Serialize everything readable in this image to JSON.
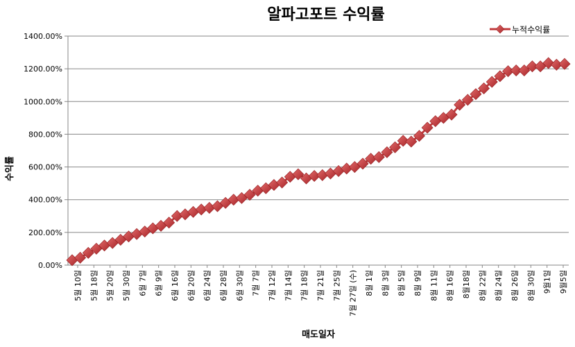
{
  "chart_data": {
    "type": "line",
    "title": "알파고포트 수익률",
    "xlabel": "매도일자",
    "ylabel": "수익률",
    "ylim": [
      0,
      1400
    ],
    "yticks": [
      "0.00%",
      "200.00%",
      "400.00%",
      "600.00%",
      "800.00%",
      "1000.00%",
      "1200.00%",
      "1400.00%"
    ],
    "grid": true,
    "legend_position": "top-right",
    "series_color": "#c0393b",
    "marker": "diamond",
    "x_tick_labels": [
      "5월 10일",
      "5월 18일",
      "5월 20일",
      "5월 30일",
      "6월 7일",
      "6월 9일",
      "6월 16일",
      "6월 20일",
      "6월 24일",
      "6월 28일",
      "6월 30일",
      "7월 7일",
      "7월 12일",
      "7월 14일",
      "7월 18일",
      "7월 21일",
      "7월 25일",
      "7월 27일 (수)",
      "8월 1일",
      "8월 3일",
      "8월 5일",
      "8월 9일",
      "8월 11일",
      "8월 16일",
      "8월18일",
      "8월 22일",
      "8월 24일",
      "8월 26일",
      "8월 30일",
      "9월1일",
      "9월5일"
    ],
    "series": [
      {
        "name": "누적수익률",
        "values": [
          30,
          45,
          75,
          100,
          120,
          135,
          155,
          175,
          190,
          205,
          225,
          240,
          260,
          300,
          310,
          325,
          340,
          350,
          360,
          380,
          400,
          410,
          430,
          455,
          470,
          490,
          505,
          540,
          555,
          530,
          545,
          550,
          560,
          575,
          590,
          600,
          620,
          650,
          660,
          690,
          720,
          760,
          755,
          790,
          840,
          880,
          900,
          920,
          980,
          1010,
          1045,
          1080,
          1120,
          1155,
          1185,
          1190,
          1190,
          1215,
          1215,
          1235,
          1225,
          1230
        ]
      }
    ]
  }
}
